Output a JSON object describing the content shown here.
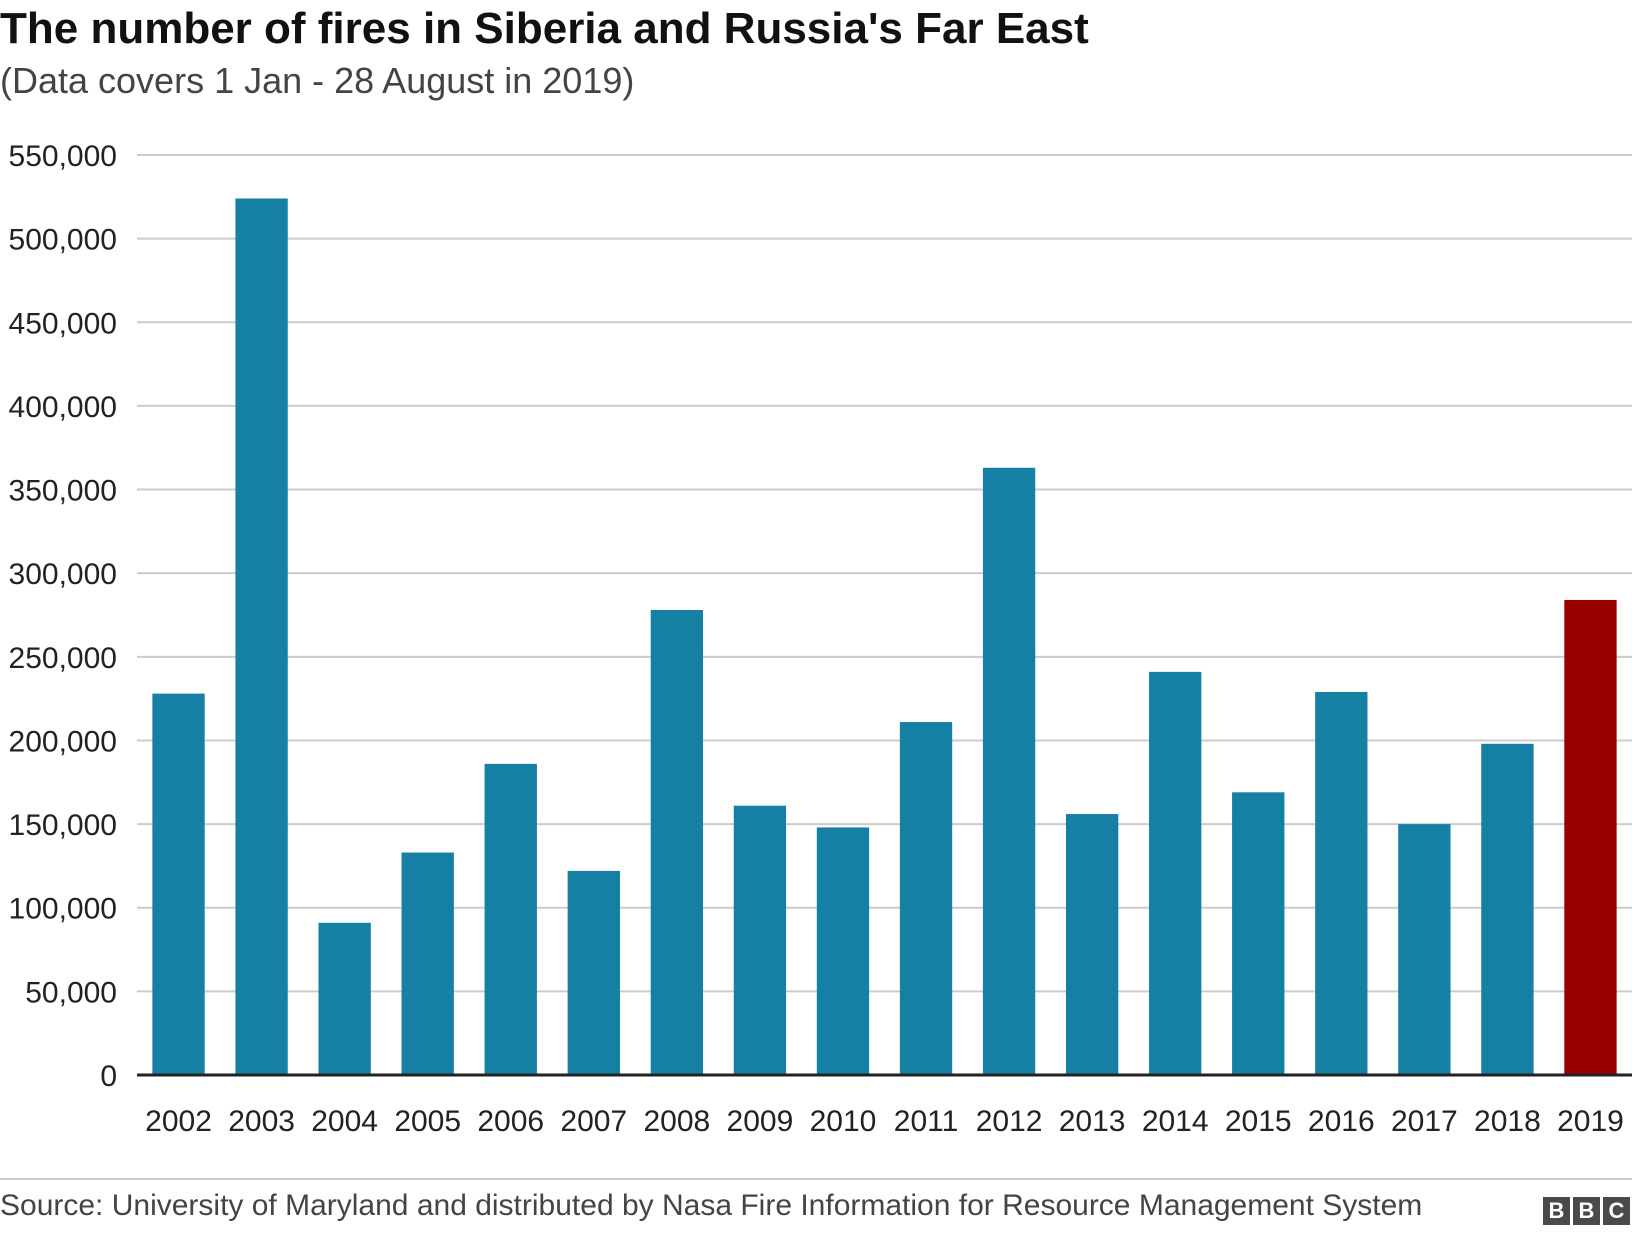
{
  "header": {
    "title": "The number of fires in Siberia and Russia's Far East",
    "subtitle": "(Data covers 1 Jan - 28 August in 2019)"
  },
  "footer": {
    "source": "Source: University of Maryland and distributed by Nasa Fire Information for Resource Management System",
    "logo_letters": [
      "B",
      "B",
      "C"
    ]
  },
  "colors": {
    "bar": "#1580a3",
    "highlight": "#990000",
    "grid": "#cccccc",
    "axis": "#222222"
  },
  "chart_data": {
    "type": "bar",
    "categories": [
      "2002",
      "2003",
      "2004",
      "2005",
      "2006",
      "2007",
      "2008",
      "2009",
      "2010",
      "2011",
      "2012",
      "2013",
      "2014",
      "2015",
      "2016",
      "2017",
      "2018",
      "2019"
    ],
    "values": [
      228000,
      524000,
      91000,
      133000,
      186000,
      122000,
      278000,
      161000,
      148000,
      211000,
      363000,
      156000,
      241000,
      169000,
      229000,
      150000,
      198000,
      284000
    ],
    "highlight_category": "2019",
    "title": "The number of fires in Siberia and Russia's Far East",
    "subtitle": "(Data covers 1 Jan - 28 August in 2019)",
    "xlabel": "",
    "ylabel": "",
    "ylim": [
      0,
      550000
    ],
    "yticks": [
      0,
      50000,
      100000,
      150000,
      200000,
      250000,
      300000,
      350000,
      400000,
      450000,
      500000,
      550000
    ],
    "ytick_labels": [
      "0",
      "50,000",
      "100,000",
      "150,000",
      "200,000",
      "250,000",
      "300,000",
      "350,000",
      "400,000",
      "450,000",
      "500,000",
      "550,000"
    ],
    "grid": true,
    "legend": "none"
  }
}
